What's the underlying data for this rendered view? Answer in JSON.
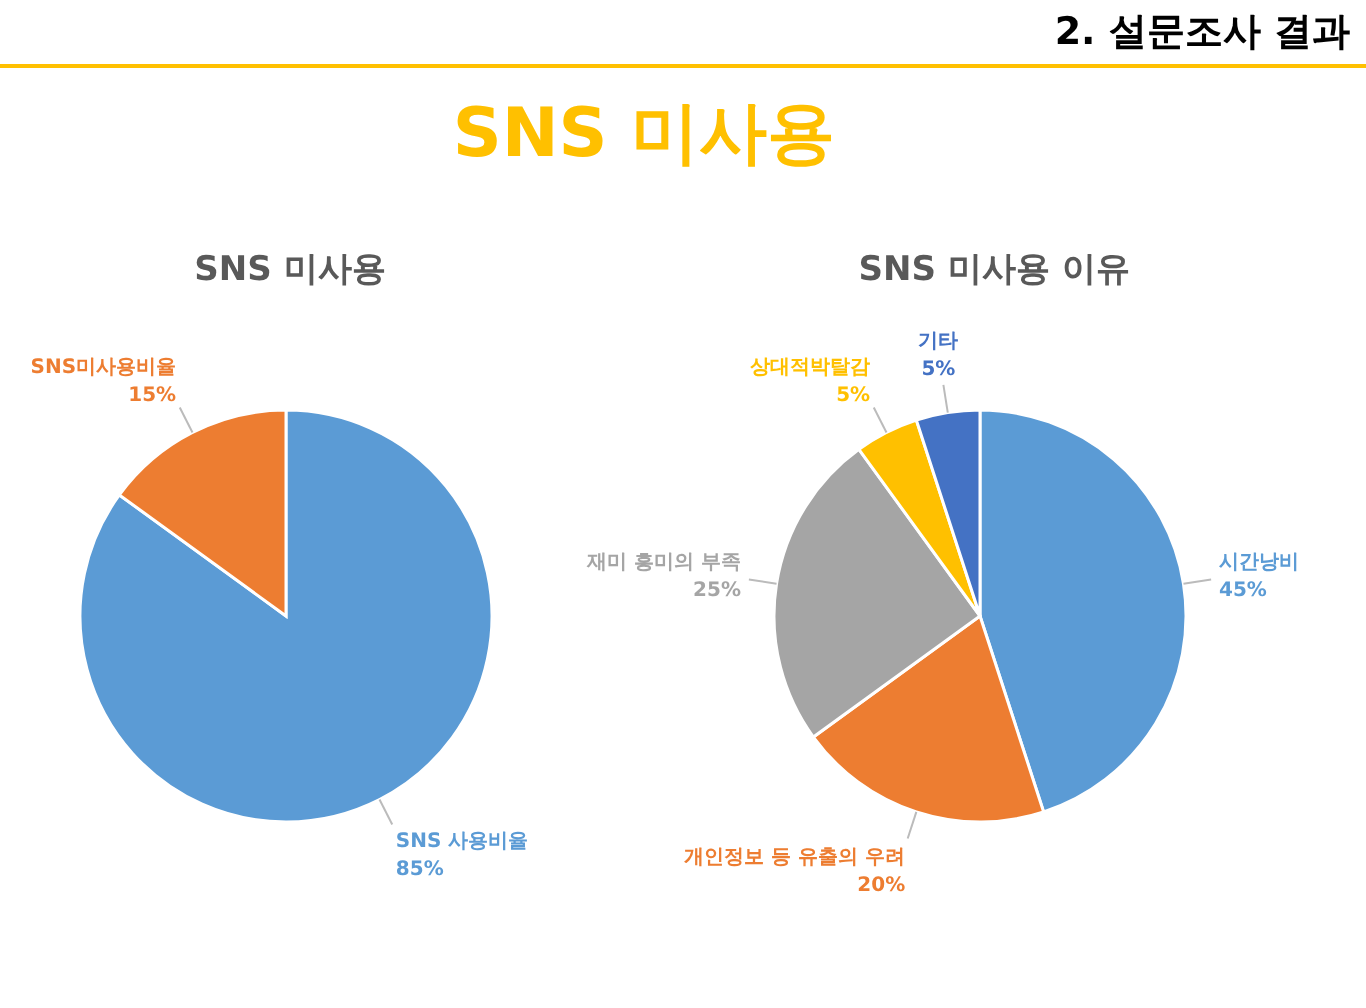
{
  "chart_data": [
    {
      "type": "pie",
      "title": "SNS 미사용",
      "annotations": [
        "2. 설문조사 결과",
        "SNS 미사용"
      ],
      "categories": [
        "SNS 사용비율",
        "SNS미사용비율"
      ],
      "values": [
        85,
        15
      ],
      "colors": [
        "#5b9bd5",
        "#ed7d31"
      ],
      "value_labels": [
        "85%",
        "15%"
      ]
    },
    {
      "type": "pie",
      "title": "SNS 미사용 이유",
      "categories": [
        "시간낭비",
        "개인정보 등 유출의 우려",
        "재미 흥미의 부족",
        "상대적박탈감",
        "기타"
      ],
      "values": [
        45,
        20,
        25,
        5,
        5
      ],
      "colors": [
        "#5b9bd5",
        "#ed7d31",
        "#a5a5a5",
        "#ffc000",
        "#4472c4"
      ],
      "value_labels": [
        "45%",
        "20%",
        "25%",
        "5%",
        "5%"
      ]
    }
  ]
}
